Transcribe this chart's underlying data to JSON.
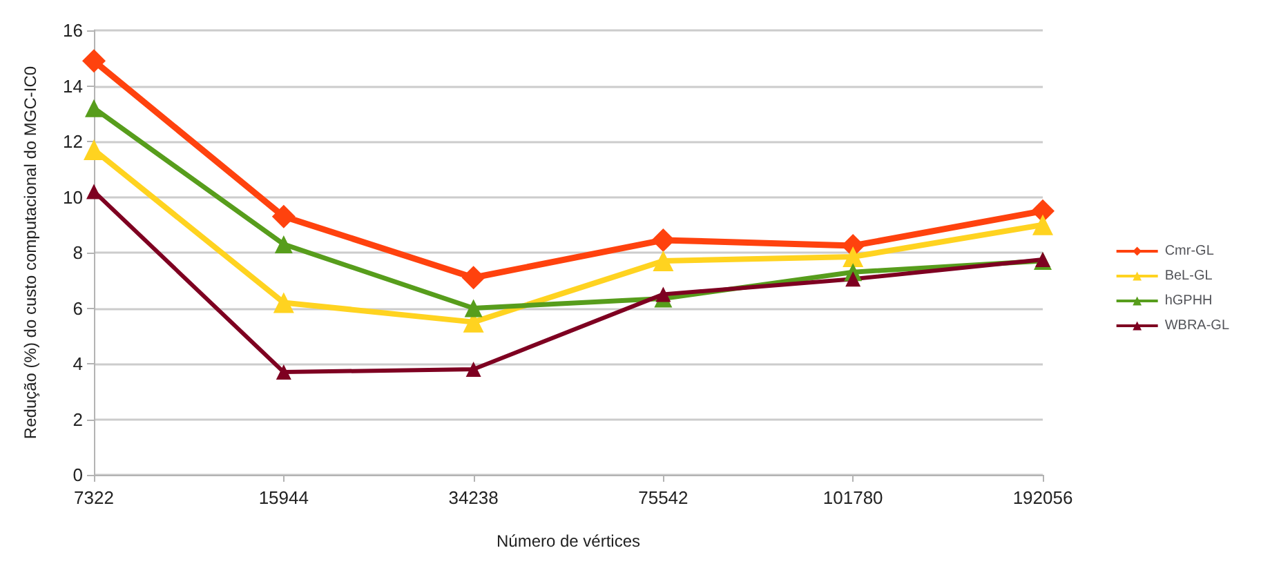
{
  "chart_data": {
    "type": "line",
    "xlabel": "Número de vértices",
    "ylabel": "Redução (%) do custo computacional do MGC-IC0",
    "categories": [
      "7322",
      "15944",
      "34238",
      "75542",
      "101780",
      "192056"
    ],
    "ylim": [
      0,
      16
    ],
    "yticks": [
      0,
      2,
      4,
      6,
      8,
      10,
      12,
      14,
      16
    ],
    "grid": "y",
    "legend": "right",
    "line_style": "solid",
    "series": [
      {
        "name": "Cmr-GL",
        "color": "#ff420e",
        "marker": "diamond",
        "values": [
          14.9,
          9.3,
          7.1,
          8.45,
          8.25,
          9.5
        ]
      },
      {
        "name": "BeL-GL",
        "color": "#ffd320",
        "marker": "triangle",
        "values": [
          11.7,
          6.2,
          5.5,
          7.7,
          7.85,
          9.0
        ]
      },
      {
        "name": "hGPHH",
        "color": "#579d1c",
        "marker": "triangle",
        "values": [
          13.2,
          8.3,
          6.0,
          6.35,
          7.3,
          7.7
        ]
      },
      {
        "name": "WBRA-GL",
        "color": "#7e0021",
        "marker": "triangle",
        "values": [
          10.2,
          3.7,
          3.8,
          6.5,
          7.05,
          7.75
        ]
      }
    ]
  }
}
